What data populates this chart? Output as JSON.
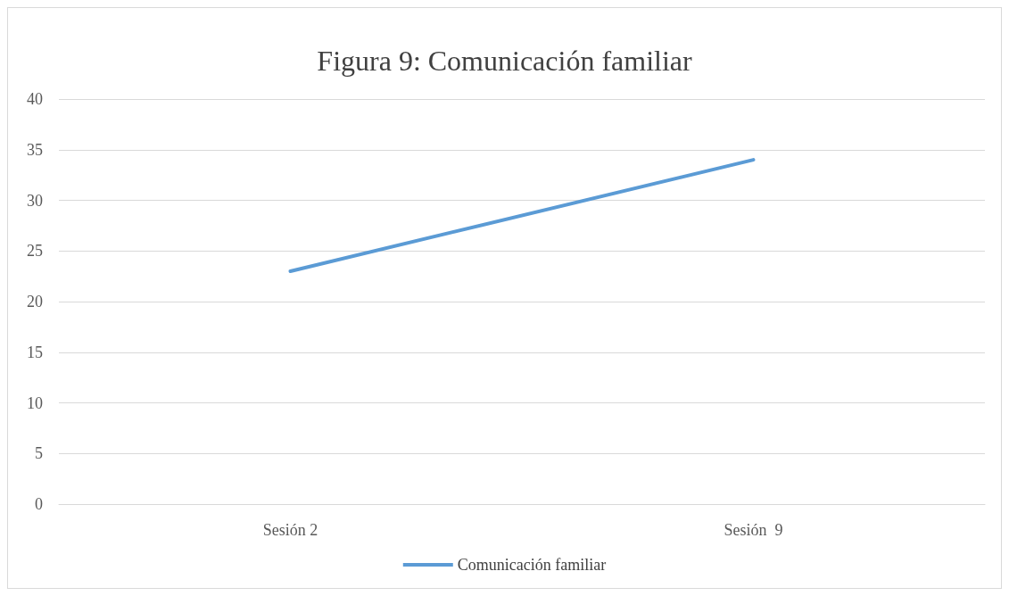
{
  "chart_data": {
    "type": "line",
    "title": "Figura 9: Comunicación familiar",
    "categories": [
      "Sesión 2",
      "Sesión  9"
    ],
    "series": [
      {
        "name": "Comunicación familiar",
        "color": "#5b9bd5",
        "values": [
          23,
          34
        ]
      }
    ],
    "ylim": [
      0,
      40
    ],
    "yticks": [
      0,
      5,
      10,
      15,
      20,
      25,
      30,
      35,
      40
    ],
    "grid": "y",
    "legend": "bottom",
    "marker": "none",
    "line_style": "solid"
  }
}
